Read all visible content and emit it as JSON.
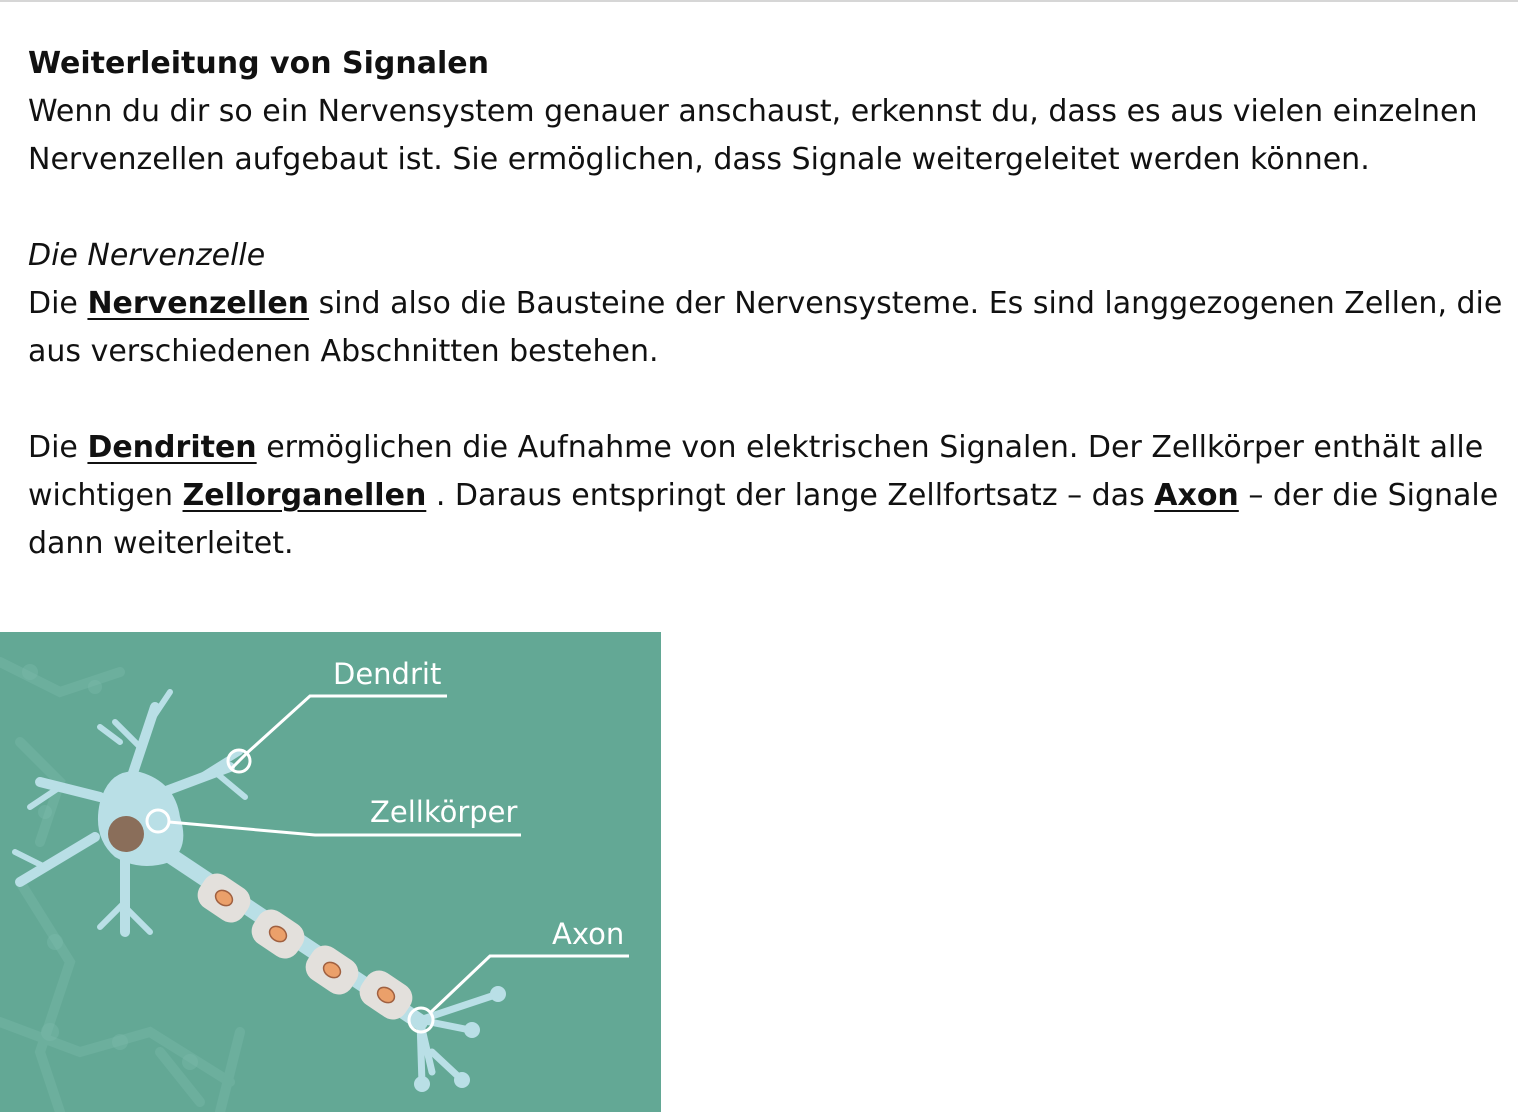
{
  "heading": "Weiterleitung von Signalen",
  "intro": "Wenn du dir so ein Nervensystem genauer anschaust, erkennst du, dass es aus vielen einzelnen Nervenzellen aufgebaut ist. Sie ermöglichen, dass Signale weitergeleitet werden können.",
  "subheading": "Die Nervenzelle",
  "para2": {
    "before": "Die ",
    "term": "Nervenzellen",
    "after": " sind also die Bausteine der Nervensysteme. Es sind langgezogenen Zellen, die aus verschiedenen Abschnitten bestehen."
  },
  "para3": {
    "part1": "Die ",
    "term1": "Dendriten",
    "part2": " ermöglichen die Aufnahme von elektrischen Signalen. Der Zellkörper enthält alle wichtigen ",
    "term2": "Zellorganellen",
    "part3": " . Daraus entspringt der lange Zellfortsatz – das ",
    "term3": "Axon",
    "part4": " –  der die Signale dann weiterleitet."
  },
  "figure": {
    "label_dendrit": "Dendrit",
    "label_zellkoerper": "Zellkörper",
    "label_axon": "Axon",
    "colors": {
      "background": "#63a895",
      "cell": "#b9dfe6",
      "nucleus": "#8a6e5a",
      "myelin": "#e3e0dc",
      "node": "#eba06a",
      "line": "#ffffff"
    }
  }
}
